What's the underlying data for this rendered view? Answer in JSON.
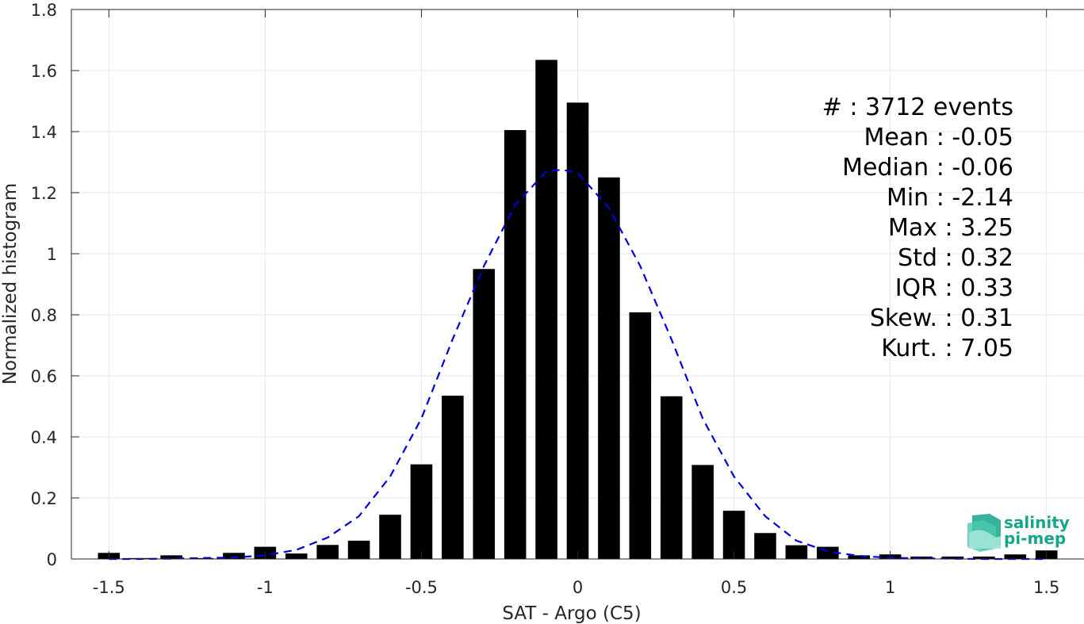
{
  "chart_data": {
    "type": "bar",
    "xlabel": "SAT - Argo (C5)",
    "ylabel": "Normalized histogram",
    "xlim": [
      -1.62,
      1.62
    ],
    "ylim": [
      0,
      1.8
    ],
    "xticks": [
      -1.5,
      -1,
      -0.5,
      0,
      0.5,
      1,
      1.5
    ],
    "xtick_labels": [
      "-1.5",
      "-1",
      "-0.5",
      "0",
      "0.5",
      "1",
      "1.5"
    ],
    "yticks": [
      0,
      0.2,
      0.4,
      0.6,
      0.8,
      1,
      1.2,
      1.4,
      1.6,
      1.8
    ],
    "ytick_labels": [
      "0",
      "0.2",
      "0.4",
      "0.6",
      "0.8",
      "1",
      "1.2",
      "1.4",
      "1.6",
      "1.8"
    ],
    "grid": true,
    "bar_width": 0.07,
    "bars": {
      "x": [
        -1.5,
        -1.4,
        -1.3,
        -1.2,
        -1.1,
        -1.0,
        -0.9,
        -0.8,
        -0.7,
        -0.6,
        -0.5,
        -0.4,
        -0.3,
        -0.2,
        -0.1,
        0.0,
        0.1,
        0.2,
        0.3,
        0.4,
        0.5,
        0.6,
        0.7,
        0.8,
        0.9,
        1.0,
        1.1,
        1.2,
        1.3,
        1.4,
        1.5
      ],
      "values": [
        0.02,
        0.003,
        0.012,
        0.003,
        0.02,
        0.04,
        0.018,
        0.046,
        0.06,
        0.145,
        0.31,
        0.535,
        0.95,
        1.405,
        1.635,
        1.495,
        1.25,
        0.808,
        0.533,
        0.308,
        0.158,
        0.085,
        0.045,
        0.04,
        0.012,
        0.015,
        0.008,
        0.008,
        0.008,
        0.015,
        0.028
      ],
      "color": "#000000"
    },
    "fit_curve": {
      "style": "dashed",
      "color": "#0000e0",
      "x": [
        -1.5,
        -1.4,
        -1.3,
        -1.2,
        -1.1,
        -1.0,
        -0.9,
        -0.8,
        -0.7,
        -0.6,
        -0.5,
        -0.4,
        -0.3,
        -0.2,
        -0.1,
        -0.05,
        0.0,
        0.1,
        0.2,
        0.3,
        0.4,
        0.5,
        0.6,
        0.7,
        0.8,
        0.9,
        1.0,
        1.1,
        1.2,
        1.3,
        1.4,
        1.5
      ],
      "values": [
        0.0,
        0.0,
        0.001,
        0.003,
        0.005,
        0.012,
        0.03,
        0.07,
        0.14,
        0.27,
        0.46,
        0.72,
        0.96,
        1.16,
        1.27,
        1.275,
        1.265,
        1.15,
        0.96,
        0.72,
        0.46,
        0.27,
        0.14,
        0.06,
        0.025,
        0.01,
        0.004,
        0.002,
        0.001,
        0.0,
        0.0,
        0.0
      ]
    },
    "stats": [
      "#  : 3712 events",
      "Mean : -0.05",
      "Median : -0.06",
      "Min : -2.14",
      "Max : 3.25",
      "Std : 0.32",
      "IQR : 0.33",
      "Skew. : 0.31",
      "Kurt. : 7.05"
    ]
  },
  "logo": {
    "line1": "salinity",
    "line2": "pi-mep",
    "icon": "wave-block-icon",
    "color": "#17a589"
  }
}
